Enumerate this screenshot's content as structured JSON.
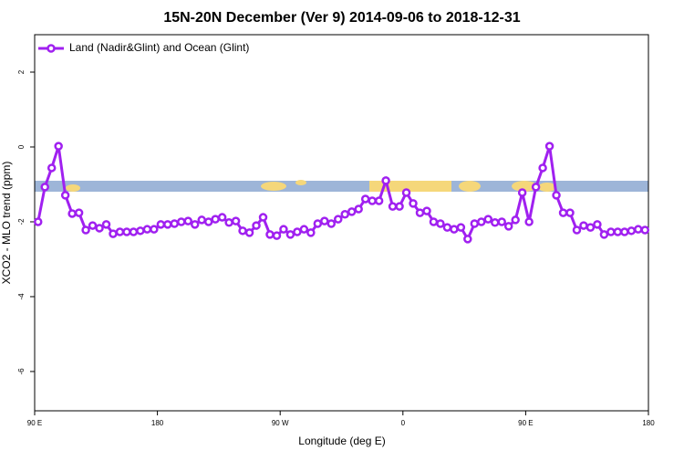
{
  "chart_data": {
    "type": "line",
    "title": "15N-20N December (Ver 9)   2014-09-06 to 2018-12-31",
    "xlabel": "Longitude (deg E)",
    "ylabel": "XCO2 - MLO trend (ppm)",
    "xlim": [
      90,
      540
    ],
    "ylim": [
      -7.05,
      3.0
    ],
    "xticks": [
      {
        "value": 90,
        "label": "90 E"
      },
      180,
      {
        "value": 270,
        "label": "90 W"
      },
      {
        "value": 360,
        "label": "0"
      },
      {
        "value": 450,
        "label": "90 E"
      },
      {
        "value": 540,
        "label": "180"
      }
    ],
    "yticks": [
      2,
      0,
      -2,
      -4,
      -6
    ],
    "legend": "top-left",
    "x": [
      92.5,
      97.5,
      102.5,
      107.5,
      112.5,
      117.5,
      122.5,
      127.5,
      132.5,
      137.5,
      142.5,
      147.5,
      152.5,
      157.5,
      162.5,
      167.5,
      172.5,
      177.5,
      182.5,
      187.5,
      192.5,
      197.5,
      202.5,
      207.5,
      212.5,
      217.5,
      222.5,
      227.5,
      232.5,
      237.5,
      242.5,
      247.5,
      252.5,
      257.5,
      262.5,
      267.5,
      272.5,
      277.5,
      282.5,
      287.5,
      292.5,
      297.5,
      302.5,
      307.5,
      312.5,
      317.5,
      322.5,
      327.5,
      332.5,
      337.5,
      342.5,
      347.5,
      352.5,
      357.5,
      362.5,
      367.5,
      372.5,
      377.5,
      382.5,
      387.5,
      392.5,
      397.5,
      402.5,
      407.5,
      412.5,
      417.5,
      422.5,
      427.5,
      432.5,
      437.5,
      442.5,
      447.5,
      452.5,
      457.5,
      462.5,
      467.5,
      472.5,
      477.5,
      482.5,
      487.5,
      492.5,
      497.5,
      502.5,
      507.5,
      512.5,
      517.5,
      522.5,
      527.5,
      532.5,
      537.5
    ],
    "series": [
      {
        "name": "Land (Nadir&Glint) and Ocean (Glint)",
        "color": "#a020f0",
        "values": [
          -2.0,
          -1.07,
          -0.56,
          0.02,
          -1.29,
          -1.78,
          -1.76,
          -2.22,
          -2.1,
          -2.17,
          -2.07,
          -2.32,
          -2.27,
          -2.27,
          -2.27,
          -2.24,
          -2.2,
          -2.2,
          -2.07,
          -2.07,
          -2.05,
          -2.0,
          -1.98,
          -2.07,
          -1.95,
          -2.0,
          -1.93,
          -1.88,
          -2.02,
          -1.98,
          -2.24,
          -2.29,
          -2.1,
          -1.88,
          -2.34,
          -2.37,
          -2.2,
          -2.34,
          -2.27,
          -2.2,
          -2.29,
          -2.05,
          -1.98,
          -2.05,
          -1.93,
          -1.8,
          -1.73,
          -1.66,
          -1.39,
          -1.44,
          -1.44,
          -0.9,
          -1.59,
          -1.59,
          -1.22,
          -1.51,
          -1.76,
          -1.71,
          -2.0,
          -2.05,
          -2.15,
          -2.2,
          -2.15,
          -2.46,
          -2.05,
          -2.0,
          -1.93,
          -2.02,
          -2.0,
          -2.12,
          -1.95,
          -1.22,
          -2.0,
          -1.07,
          -0.56,
          0.02,
          -1.29,
          -1.76,
          -1.76,
          -2.22,
          -2.1,
          -2.15,
          -2.07,
          -2.34,
          -2.27,
          -2.27,
          -2.27,
          -2.24,
          -2.2,
          -2.22
        ]
      }
    ]
  }
}
